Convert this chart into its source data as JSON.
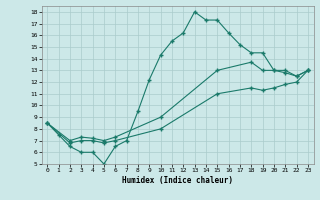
{
  "xlabel": "Humidex (Indice chaleur)",
  "bg_color": "#cce8e8",
  "grid_color": "#aacccc",
  "line_color": "#1a7a6a",
  "xlim": [
    -0.5,
    23.5
  ],
  "ylim": [
    5,
    18.5
  ],
  "yticks": [
    5,
    6,
    7,
    8,
    9,
    10,
    11,
    12,
    13,
    14,
    15,
    16,
    17,
    18
  ],
  "xticks": [
    0,
    1,
    2,
    3,
    4,
    5,
    6,
    7,
    8,
    9,
    10,
    11,
    12,
    13,
    14,
    15,
    16,
    17,
    18,
    19,
    20,
    21,
    22,
    23
  ],
  "line1_x": [
    0,
    1,
    2,
    3,
    4,
    5,
    6,
    7,
    8,
    9,
    10,
    11,
    12,
    13,
    14,
    15,
    16,
    17,
    18,
    19,
    20,
    21,
    22,
    23
  ],
  "line1_y": [
    8.5,
    7.5,
    6.5,
    6.0,
    6.0,
    5.0,
    6.5,
    7.0,
    9.5,
    12.2,
    14.3,
    15.5,
    16.2,
    18.0,
    17.3,
    17.3,
    16.2,
    15.2,
    14.5,
    14.5,
    13.0,
    13.0,
    12.5,
    13.0
  ],
  "line2_x": [
    0,
    2,
    3,
    4,
    5,
    6,
    10,
    15,
    18,
    19,
    20,
    21,
    22,
    23
  ],
  "line2_y": [
    8.5,
    7.0,
    7.3,
    7.2,
    7.0,
    7.3,
    9.0,
    13.0,
    13.7,
    13.0,
    13.0,
    12.8,
    12.5,
    13.0
  ],
  "line3_x": [
    0,
    2,
    3,
    4,
    5,
    6,
    10,
    15,
    18,
    19,
    20,
    21,
    22,
    23
  ],
  "line3_y": [
    8.5,
    6.8,
    7.0,
    7.0,
    6.8,
    7.0,
    8.0,
    11.0,
    11.5,
    11.3,
    11.5,
    11.8,
    12.0,
    13.0
  ]
}
